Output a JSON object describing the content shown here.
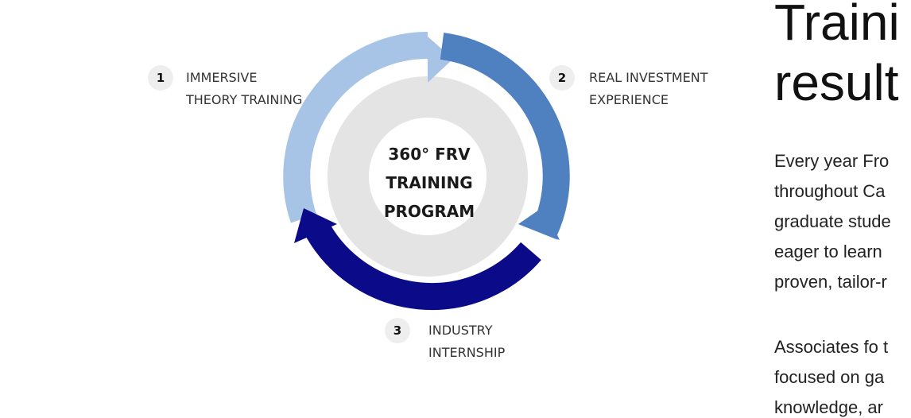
{
  "diagram": {
    "center_label": [
      "360° FRV",
      "TRAINING",
      "PROGRAM"
    ],
    "steps": [
      {
        "number": "1",
        "lines": [
          "IMMERSIVE",
          "THEORY TRAINING"
        ]
      },
      {
        "number": "2",
        "lines": [
          "REAL INVESTMENT",
          "EXPERIENCE"
        ]
      },
      {
        "number": "3",
        "lines": [
          "INDUSTRY",
          "INTERNSHIP"
        ]
      }
    ],
    "colors": {
      "step1_arc": "#a7c3e5",
      "step2_arc": "#4f81c1",
      "step3_arc": "#0b0b8a",
      "inner_ring": "#e4e4e4",
      "badge": "#eeeeee"
    }
  },
  "content": {
    "heading_lines": [
      "Traini",
      "result"
    ],
    "paragraph_1": [
      "Every year Fro",
      "throughout Ca",
      "graduate stude",
      "eager to learn",
      "proven, tailor-r"
    ],
    "paragraph_2": [
      "Associates fo t",
      "focused on ga",
      "knowledge, ar"
    ]
  }
}
